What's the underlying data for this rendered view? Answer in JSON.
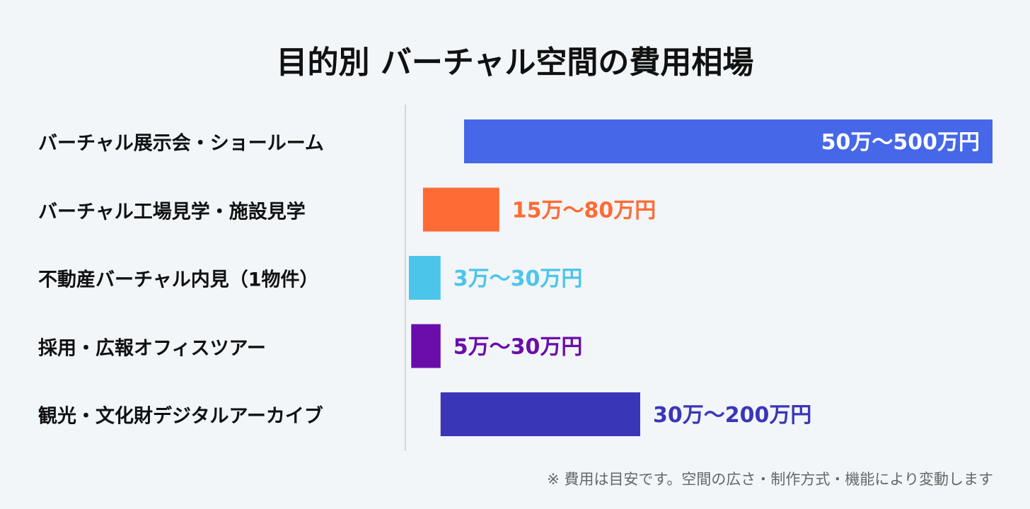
{
  "chart_data": {
    "type": "bar",
    "orientation": "horizontal",
    "title": "目的別 バーチャル空間の費用相場",
    "unit": "万円",
    "categories": [
      "バーチャル展示会・ショールーム",
      "バーチャル工場見学・施設見学",
      "不動産バーチャル内見（1物件）",
      "採用・広報オフィスツアー",
      "観光・文化財デジタルアーカイブ"
    ],
    "ranges": [
      [
        50,
        500
      ],
      [
        15,
        80
      ],
      [
        3,
        30
      ],
      [
        5,
        30
      ],
      [
        30,
        200
      ]
    ],
    "data_labels": [
      "50万〜500万円",
      "15万〜80万円",
      "3万〜30万円",
      "5万〜30万円",
      "30万〜200万円"
    ],
    "colors": [
      "#4667e8",
      "#ff6b35",
      "#4cc5ea",
      "#6a0dab",
      "#3a36b8"
    ],
    "xlim": [
      0,
      500
    ],
    "grid": false,
    "note": "※ 費用は目安です。空間の広さ・制作方式・機能により変動します"
  }
}
